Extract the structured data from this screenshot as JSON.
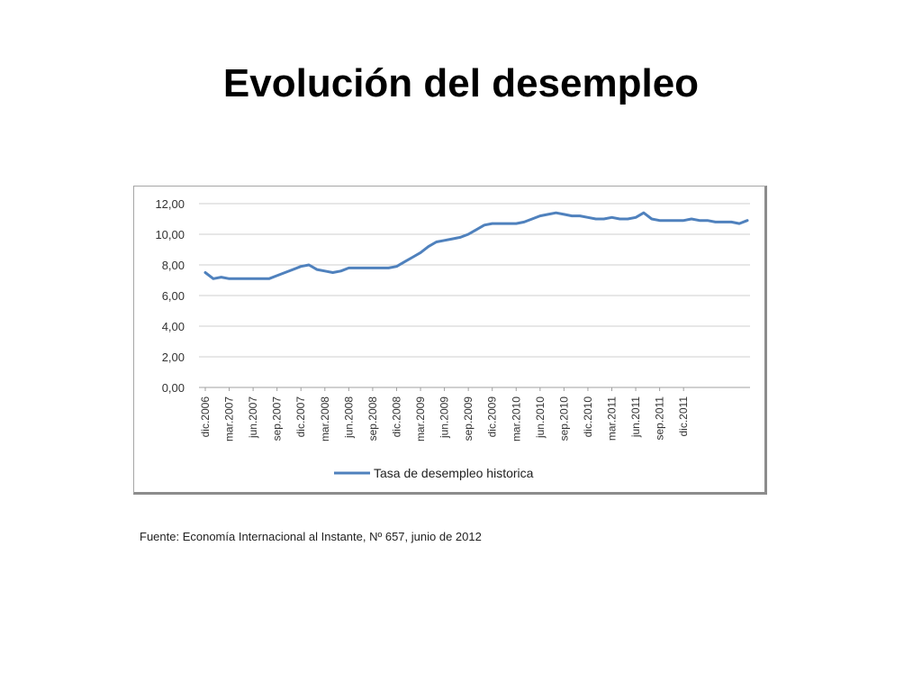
{
  "slide": {
    "title": "Evolución del desempleo",
    "source": "Fuente: Economía Internacional al Instante, Nº 657, junio de 2012"
  },
  "chart_data": {
    "type": "line",
    "title": "",
    "xlabel": "",
    "ylabel": "",
    "ylim": [
      0,
      12
    ],
    "y_ticks": [
      "0,00",
      "2,00",
      "4,00",
      "6,00",
      "8,00",
      "10,00",
      "12,00"
    ],
    "x_tick_labels": [
      "dic.2006",
      "mar.2007",
      "jun.2007",
      "sep.2007",
      "dic.2007",
      "mar.2008",
      "jun.2008",
      "sep.2008",
      "dic.2008",
      "mar.2009",
      "jun.2009",
      "sep.2009",
      "dic.2009",
      "mar.2010",
      "jun.2010",
      "sep.2010",
      "dic.2010",
      "mar.2011",
      "jun.2011",
      "sep.2011",
      "dic.2011"
    ],
    "grid": true,
    "legend_position": "bottom",
    "line_color": "#4f81bd",
    "series": [
      {
        "name": "Tasa de desempleo historica",
        "values": [
          7.5,
          7.1,
          7.2,
          7.1,
          7.1,
          7.1,
          7.1,
          7.1,
          7.1,
          7.3,
          7.5,
          7.7,
          7.9,
          8.0,
          7.7,
          7.6,
          7.5,
          7.6,
          7.8,
          7.8,
          7.8,
          7.8,
          7.8,
          7.8,
          7.9,
          8.2,
          8.5,
          8.8,
          9.2,
          9.5,
          9.6,
          9.7,
          9.8,
          10.0,
          10.3,
          10.6,
          10.7,
          10.7,
          10.7,
          10.7,
          10.8,
          11.0,
          11.2,
          11.3,
          11.4,
          11.3,
          11.2,
          11.2,
          11.1,
          11.0,
          11.0,
          11.1,
          11.0,
          11.0,
          11.1,
          11.4,
          11.0,
          10.9,
          10.9,
          10.9,
          10.9,
          11.0,
          10.9,
          10.9,
          10.8,
          10.8,
          10.8,
          10.7,
          10.9
        ]
      }
    ]
  }
}
